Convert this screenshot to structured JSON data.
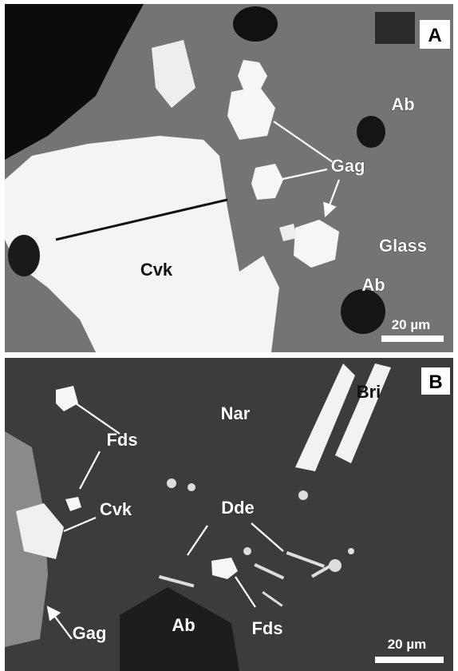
{
  "panels": [
    {
      "letter": "A",
      "labels": [
        "Ab",
        "Gag",
        "Glass",
        "Ab",
        "Cvk"
      ],
      "scale_bar": "20 µm"
    },
    {
      "letter": "B",
      "labels": [
        "Bri",
        "Nar",
        "Fds",
        "Cvk",
        "Dde",
        "Ab",
        "Gag",
        "Fds"
      ],
      "scale_bar": "20 µm"
    }
  ]
}
